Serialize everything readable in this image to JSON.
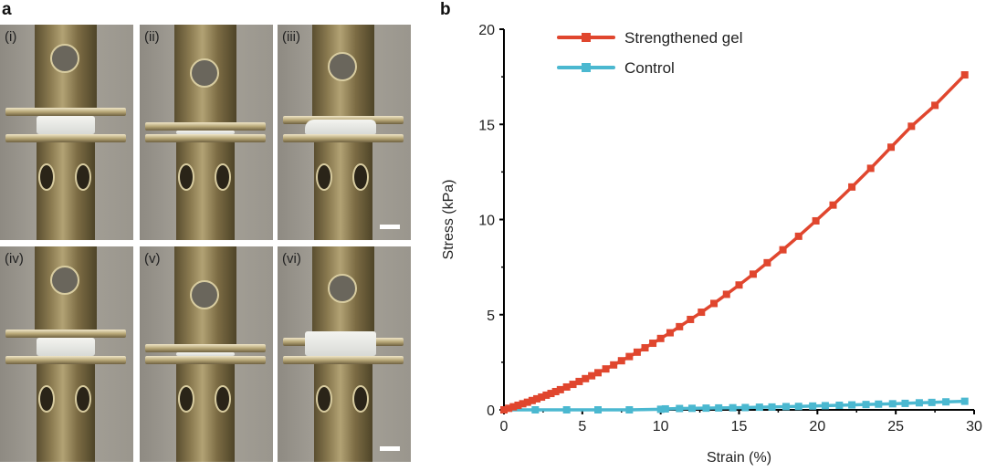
{
  "panel_a": {
    "label": "a",
    "photos": [
      {
        "tag": "(i)",
        "state": "compressed-before",
        "scale_bar": false
      },
      {
        "tag": "(ii)",
        "state": "compressed-max",
        "scale_bar": false
      },
      {
        "tag": "(iii)",
        "state": "released",
        "scale_bar": true
      },
      {
        "tag": "(iv)",
        "state": "compressed-before",
        "scale_bar": false
      },
      {
        "tag": "(v)",
        "state": "compressed-max",
        "scale_bar": false
      },
      {
        "tag": "(vi)",
        "state": "released",
        "scale_bar": true
      }
    ]
  },
  "panel_b": {
    "label": "b"
  },
  "chart_data": {
    "type": "line",
    "title": "",
    "xlabel": "Strain (%)",
    "ylabel": "Stress (kPa)",
    "xlim": [
      0,
      30
    ],
    "ylim": [
      0,
      20
    ],
    "xticks": [
      "0",
      "5",
      "10",
      "15",
      "20",
      "25",
      "30"
    ],
    "yticks": [
      "0",
      "5",
      "10",
      "15",
      "20"
    ],
    "grid": false,
    "legend_position": "top-left",
    "series": [
      {
        "name": "Strengthened gel",
        "color": "#e0462e",
        "marker": "square",
        "x": [
          0,
          0.3,
          0.6,
          0.9,
          1.2,
          1.5,
          1.8,
          2.1,
          2.4,
          2.7,
          3.0,
          3.3,
          3.6,
          4.0,
          4.4,
          4.8,
          5.2,
          5.6,
          6.0,
          6.5,
          7.0,
          7.5,
          8.0,
          8.5,
          9.0,
          9.5,
          10.0,
          10.6,
          11.2,
          11.9,
          12.6,
          13.4,
          14.2,
          15.0,
          15.9,
          16.8,
          17.8,
          18.8,
          19.9,
          21.0,
          22.2,
          23.4,
          24.7,
          26.0,
          27.5,
          29.4
        ],
        "y": [
          0,
          0.08,
          0.16,
          0.24,
          0.32,
          0.4,
          0.49,
          0.58,
          0.67,
          0.77,
          0.86,
          0.96,
          1.06,
          1.2,
          1.34,
          1.49,
          1.64,
          1.79,
          1.95,
          2.15,
          2.36,
          2.58,
          2.8,
          3.03,
          3.26,
          3.5,
          3.75,
          4.05,
          4.37,
          4.75,
          5.13,
          5.59,
          6.07,
          6.56,
          7.13,
          7.73,
          8.41,
          9.12,
          9.93,
          10.76,
          11.71,
          12.69,
          13.8,
          14.9,
          16.0,
          17.6
        ]
      },
      {
        "name": "Control",
        "color": "#4bb8d0",
        "marker": "square",
        "x": [
          0,
          2,
          4,
          6,
          8,
          10,
          10.3,
          11.2,
          12.0,
          12.9,
          13.7,
          14.6,
          15.4,
          16.3,
          17.1,
          18.0,
          18.8,
          19.7,
          20.5,
          21.4,
          22.2,
          23.1,
          23.9,
          24.8,
          25.6,
          26.5,
          27.3,
          28.2,
          29.4
        ],
        "y": [
          0,
          0,
          0,
          0,
          0,
          0.03,
          0.05,
          0.07,
          0.08,
          0.09,
          0.1,
          0.11,
          0.12,
          0.14,
          0.15,
          0.17,
          0.18,
          0.2,
          0.22,
          0.24,
          0.26,
          0.28,
          0.3,
          0.32,
          0.34,
          0.37,
          0.39,
          0.42,
          0.45
        ]
      }
    ]
  }
}
